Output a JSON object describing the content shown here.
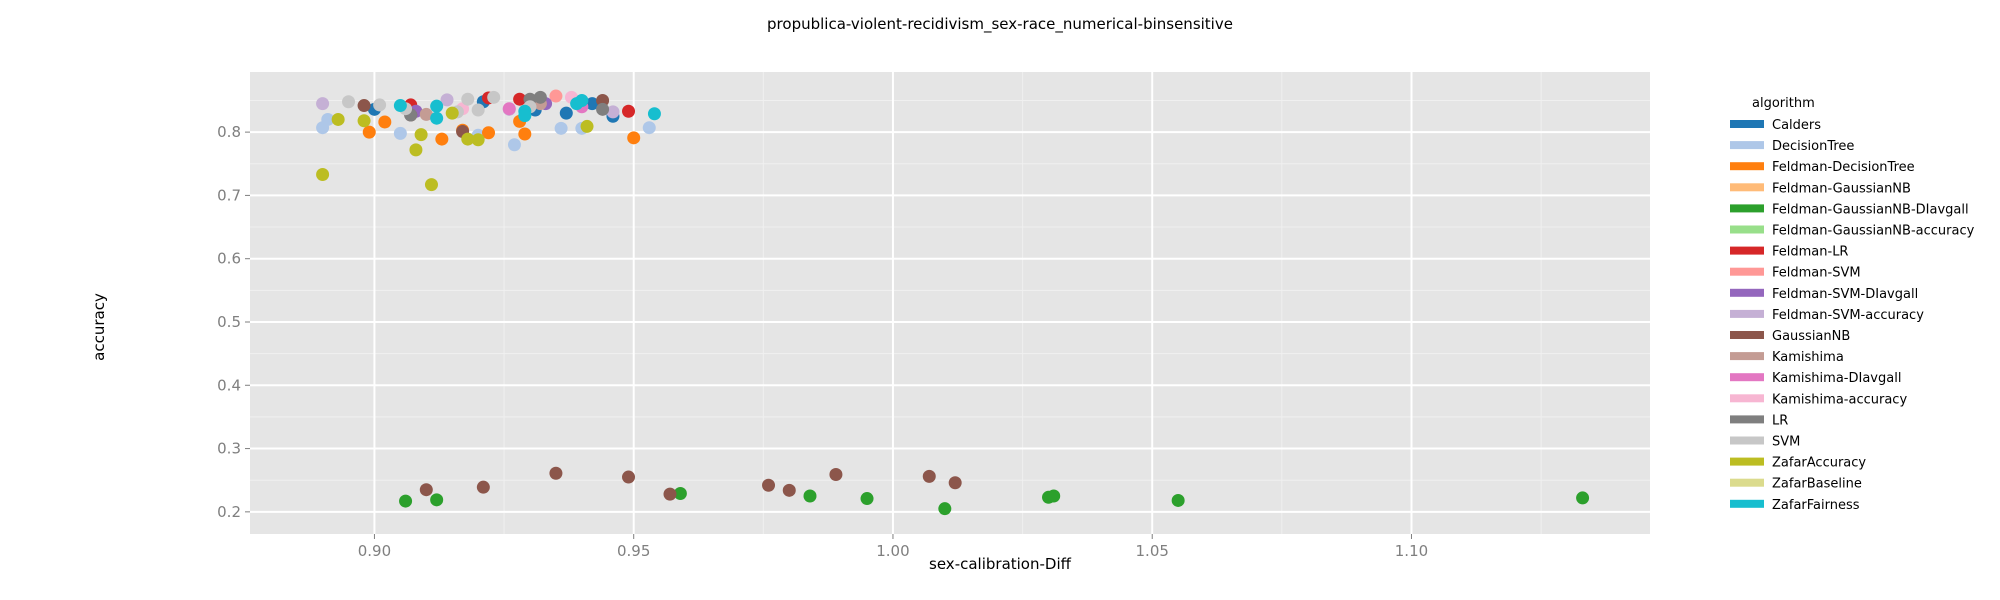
{
  "chart_data": {
    "type": "scatter",
    "title": "propublica-violent-recidivism_sex-race_numerical-binsensitive",
    "xlabel": "sex-calibration-Diff",
    "ylabel": "accuracy",
    "xlim": [
      0.876,
      1.146
    ],
    "ylim": [
      0.165,
      0.895
    ],
    "x_ticks": [
      "0.90",
      "0.95",
      "1.00",
      "1.05",
      "1.10"
    ],
    "y_ticks": [
      "0.2",
      "0.3",
      "0.4",
      "0.5",
      "0.6",
      "0.7",
      "0.8"
    ],
    "grid": true,
    "legend_title": "algorithm",
    "legend_position": "right",
    "series": [
      {
        "name": "Calders",
        "color": "#1f77b4",
        "x": [
          0.9,
          0.921,
          0.931,
          0.937,
          0.942,
          0.946
        ],
        "y": [
          0.836,
          0.848,
          0.835,
          0.83,
          0.845,
          0.825
        ]
      },
      {
        "name": "DecisionTree",
        "color": "#aec7e8",
        "x": [
          0.89,
          0.891,
          0.905,
          0.92,
          0.927,
          0.936,
          0.94,
          0.953
        ],
        "y": [
          0.807,
          0.82,
          0.798,
          0.795,
          0.78,
          0.806,
          0.806,
          0.807
        ]
      },
      {
        "name": "Feldman-DecisionTree",
        "color": "#ff7f0e",
        "x": [
          0.899,
          0.902,
          0.913,
          0.917,
          0.922,
          0.928,
          0.929,
          0.95
        ],
        "y": [
          0.8,
          0.816,
          0.789,
          0.803,
          0.799,
          0.817,
          0.797,
          0.791
        ]
      },
      {
        "name": "Feldman-GaussianNB",
        "color": "#ffbb78",
        "x": [],
        "y": []
      },
      {
        "name": "Feldman-GaussianNB-DIavgall",
        "color": "#2ca02c",
        "x": [
          0.906,
          0.912,
          0.959,
          0.984,
          0.995,
          1.01,
          1.03,
          1.031,
          1.055,
          1.133
        ],
        "y": [
          0.217,
          0.219,
          0.229,
          0.225,
          0.221,
          0.205,
          0.223,
          0.225,
          0.218,
          0.222
        ]
      },
      {
        "name": "Feldman-GaussianNB-accuracy",
        "color": "#98df8a",
        "x": [],
        "y": []
      },
      {
        "name": "Feldman-LR",
        "color": "#d62728",
        "x": [
          0.907,
          0.922,
          0.928,
          0.949
        ],
        "y": [
          0.843,
          0.854,
          0.852,
          0.833
        ]
      },
      {
        "name": "Feldman-SVM",
        "color": "#ff9896",
        "x": [
          0.935
        ],
        "y": [
          0.857
        ]
      },
      {
        "name": "Feldman-SVM-DIavgall",
        "color": "#9467bd",
        "x": [
          0.908,
          0.933
        ],
        "y": [
          0.833,
          0.845
        ]
      },
      {
        "name": "Feldman-SVM-accuracy",
        "color": "#c5b0d5",
        "x": [
          0.89,
          0.914,
          0.926,
          0.946
        ],
        "y": [
          0.845,
          0.851,
          0.836,
          0.832
        ]
      },
      {
        "name": "GaussianNB",
        "color": "#8c564b",
        "x": [
          0.898,
          0.907,
          0.91,
          0.917,
          0.921,
          0.935,
          0.944,
          0.949,
          0.957,
          0.976,
          0.98,
          0.989,
          1.007,
          1.012
        ],
        "y": [
          0.842,
          0.827,
          0.235,
          0.801,
          0.239,
          0.261,
          0.85,
          0.255,
          0.228,
          0.242,
          0.234,
          0.259,
          0.256,
          0.246
        ]
      },
      {
        "name": "Kamishima",
        "color": "#c49c94",
        "x": [
          0.91,
          0.932
        ],
        "y": [
          0.828,
          0.845
        ]
      },
      {
        "name": "Kamishima-DIavgall",
        "color": "#e377c2",
        "x": [
          0.926,
          0.94
        ],
        "y": [
          0.837,
          0.84
        ]
      },
      {
        "name": "Kamishima-accuracy",
        "color": "#f7b6d2",
        "x": [
          0.917,
          0.938
        ],
        "y": [
          0.837,
          0.855
        ]
      },
      {
        "name": "LR",
        "color": "#7f7f7f",
        "x": [
          0.907,
          0.93,
          0.932,
          0.944
        ],
        "y": [
          0.827,
          0.852,
          0.855,
          0.836
        ]
      },
      {
        "name": "SVM",
        "color": "#c7c7c7",
        "x": [
          0.895,
          0.901,
          0.906,
          0.916,
          0.918,
          0.92,
          0.923,
          0.93
        ],
        "y": [
          0.848,
          0.843,
          0.837,
          0.832,
          0.852,
          0.835,
          0.855,
          0.84
        ]
      },
      {
        "name": "ZafarAccuracy",
        "color": "#bcbd22",
        "x": [
          0.89,
          0.893,
          0.898,
          0.908,
          0.909,
          0.911,
          0.915,
          0.918,
          0.92,
          0.941
        ],
        "y": [
          0.733,
          0.82,
          0.818,
          0.772,
          0.796,
          0.717,
          0.83,
          0.789,
          0.788,
          0.809
        ]
      },
      {
        "name": "ZafarBaseline",
        "color": "#dbdb8d",
        "x": [],
        "y": []
      },
      {
        "name": "ZafarFairness",
        "color": "#17becf",
        "x": [
          0.905,
          0.912,
          0.912,
          0.929,
          0.929,
          0.939,
          0.94,
          0.954
        ],
        "y": [
          0.842,
          0.841,
          0.822,
          0.833,
          0.826,
          0.845,
          0.85,
          0.829
        ]
      }
    ]
  }
}
